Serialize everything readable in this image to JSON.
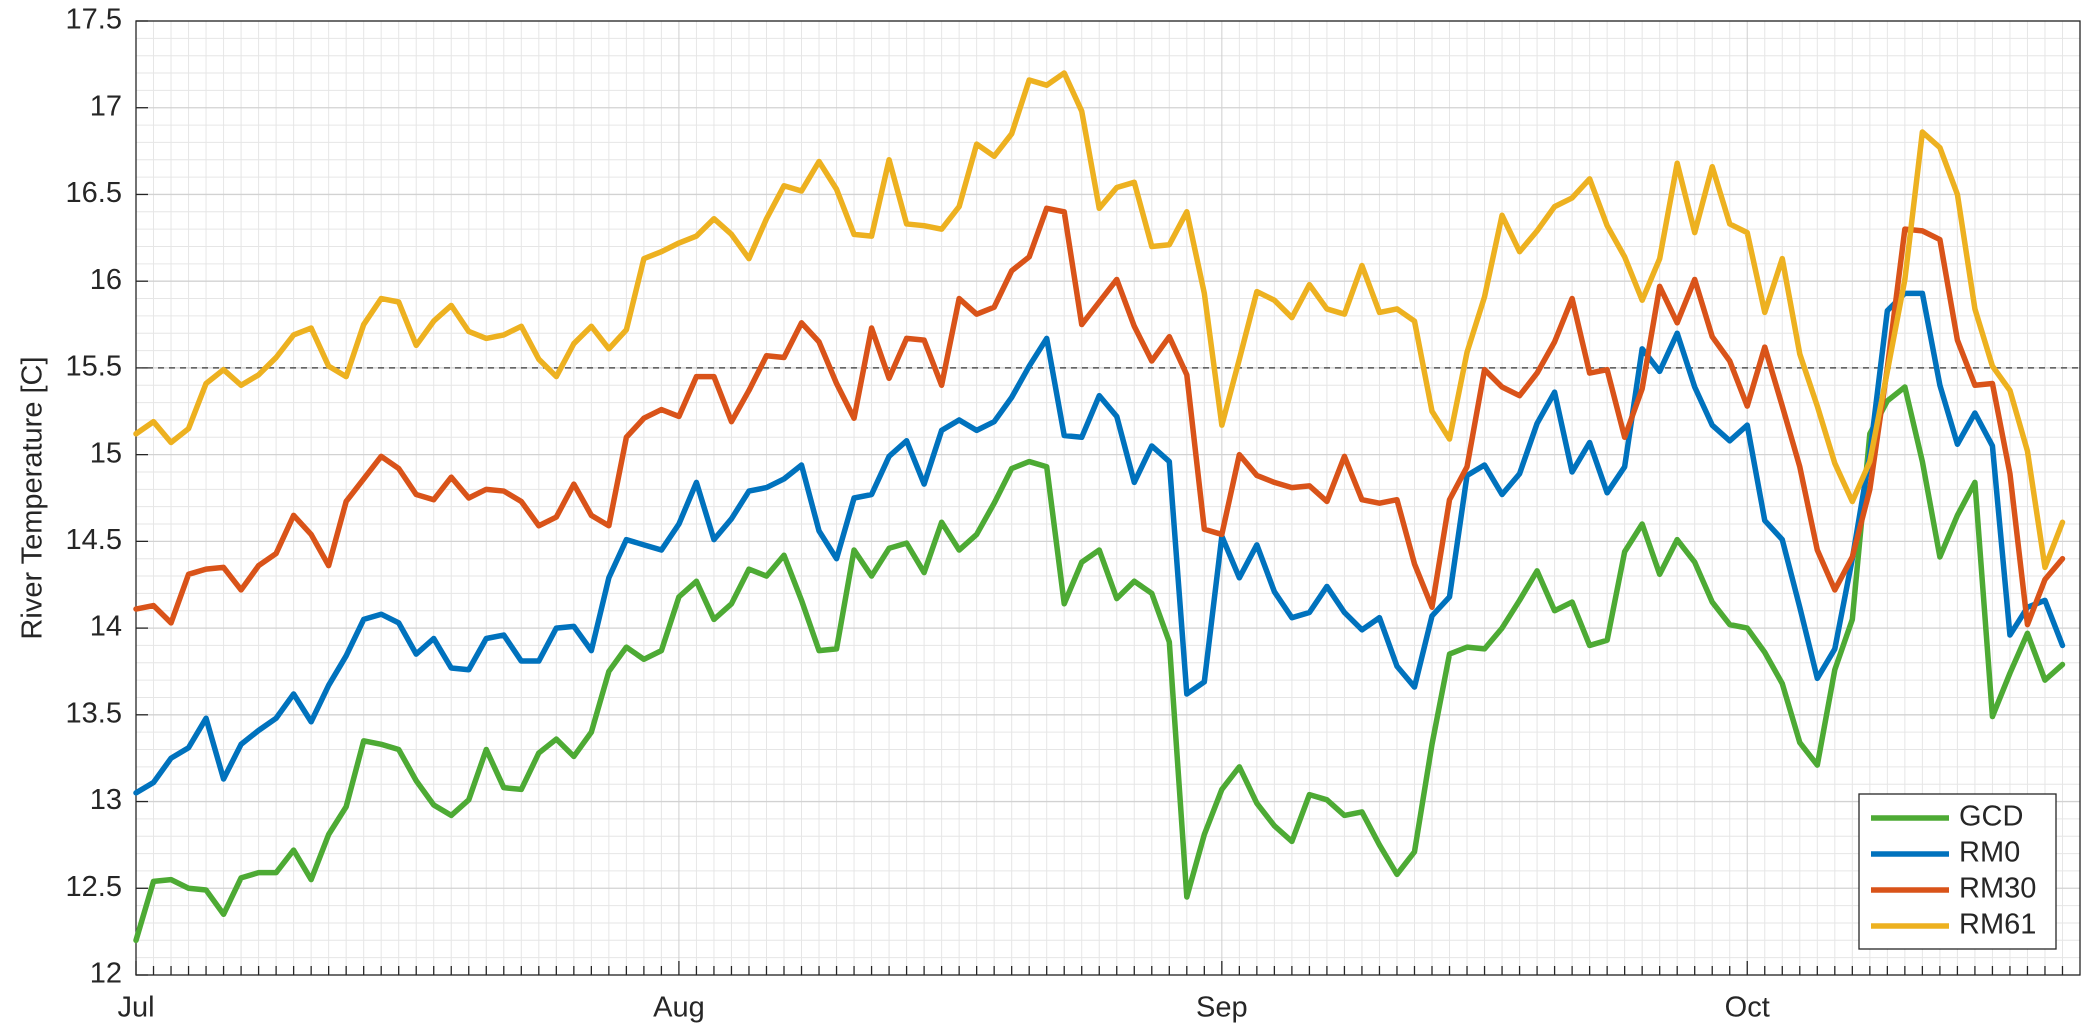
{
  "chart_data": {
    "type": "line",
    "ylabel": "River Temperature [C]",
    "categories": [
      "Jul",
      null,
      null,
      null,
      null,
      null,
      null,
      null,
      null,
      null,
      null,
      null,
      null,
      null,
      null,
      null,
      null,
      null,
      null,
      null,
      null,
      null,
      null,
      null,
      null,
      null,
      null,
      null,
      null,
      null,
      null,
      "Aug",
      null,
      null,
      null,
      null,
      null,
      null,
      null,
      null,
      null,
      null,
      null,
      null,
      null,
      null,
      null,
      null,
      null,
      null,
      null,
      null,
      null,
      null,
      null,
      null,
      null,
      null,
      null,
      null,
      null,
      null,
      "Sep",
      null,
      null,
      null,
      null,
      null,
      null,
      null,
      null,
      null,
      null,
      null,
      null,
      null,
      null,
      null,
      null,
      null,
      null,
      null,
      null,
      null,
      null,
      null,
      null,
      null,
      null,
      null,
      null,
      null,
      "Oct",
      null,
      null,
      null,
      null,
      null,
      null,
      null,
      null,
      null,
      null,
      null,
      null,
      null,
      null,
      null,
      null,
      null,
      null
    ],
    "series": [
      {
        "name": "GCD",
        "color": "#4DAA34",
        "values": [
          12.2,
          12.54,
          12.55,
          12.5,
          12.49,
          12.35,
          12.56,
          12.59,
          12.59,
          12.72,
          12.55,
          12.81,
          12.97,
          13.35,
          13.33,
          13.3,
          13.12,
          12.98,
          12.92,
          13.01,
          13.3,
          13.08,
          13.07,
          13.28,
          13.36,
          13.26,
          13.4,
          13.75,
          13.89,
          13.82,
          13.87,
          14.18,
          14.27,
          14.05,
          14.14,
          14.34,
          14.3,
          14.42,
          14.16,
          13.87,
          13.88,
          14.45,
          14.3,
          14.46,
          14.49,
          14.32,
          14.61,
          14.45,
          14.54,
          14.72,
          14.92,
          14.96,
          14.93,
          14.14,
          14.38,
          14.45,
          14.17,
          14.27,
          14.2,
          13.92,
          12.45,
          12.81,
          13.07,
          13.2,
          12.99,
          12.86,
          12.77,
          13.04,
          13.01,
          12.92,
          12.94,
          12.75,
          12.58,
          12.71,
          13.33,
          13.85,
          13.89,
          13.88,
          14.0,
          14.16,
          14.33,
          14.1,
          14.15,
          13.9,
          13.93,
          14.44,
          14.6,
          14.31,
          14.51,
          14.38,
          14.15,
          14.02,
          14.0,
          13.86,
          13.68,
          13.34,
          13.21,
          13.76,
          14.05,
          15.12,
          15.31,
          15.39,
          14.96,
          14.41,
          14.65,
          14.84,
          13.49,
          13.74,
          13.97,
          13.7,
          13.79
        ]
      },
      {
        "name": "RM0",
        "color": "#0072BD",
        "values": [
          13.05,
          13.11,
          13.25,
          13.31,
          13.48,
          13.13,
          13.33,
          13.41,
          13.48,
          13.62,
          13.46,
          13.67,
          13.84,
          14.05,
          14.08,
          14.03,
          13.85,
          13.94,
          13.77,
          13.76,
          13.94,
          13.96,
          13.81,
          13.81,
          14.0,
          14.01,
          13.87,
          14.29,
          14.51,
          14.48,
          14.45,
          14.6,
          14.84,
          14.51,
          14.63,
          14.79,
          14.81,
          14.86,
          14.94,
          14.56,
          14.4,
          14.75,
          14.77,
          14.99,
          15.08,
          14.83,
          15.14,
          15.2,
          15.14,
          15.19,
          15.33,
          15.51,
          15.67,
          15.11,
          15.1,
          15.34,
          15.22,
          14.84,
          15.05,
          14.96,
          13.62,
          13.69,
          14.53,
          14.29,
          14.48,
          14.21,
          14.06,
          14.09,
          14.24,
          14.09,
          13.99,
          14.06,
          13.78,
          13.66,
          14.07,
          14.18,
          14.88,
          14.94,
          14.77,
          14.89,
          15.18,
          15.36,
          14.9,
          15.07,
          14.78,
          14.93,
          15.61,
          15.48,
          15.7,
          15.39,
          15.17,
          15.08,
          15.17,
          14.62,
          14.51,
          14.12,
          13.71,
          13.88,
          14.4,
          15.0,
          15.83,
          15.93,
          15.93,
          15.4,
          15.06,
          15.24,
          15.05,
          13.96,
          14.12,
          14.16,
          13.9
        ]
      },
      {
        "name": "RM30",
        "color": "#D95319",
        "values": [
          14.11,
          14.13,
          14.03,
          14.31,
          14.34,
          14.35,
          14.22,
          14.36,
          14.43,
          14.65,
          14.54,
          14.36,
          14.73,
          14.86,
          14.99,
          14.92,
          14.77,
          14.74,
          14.87,
          14.75,
          14.8,
          14.79,
          14.73,
          14.59,
          14.64,
          14.83,
          14.65,
          14.59,
          15.1,
          15.21,
          15.26,
          15.22,
          15.45,
          15.45,
          15.19,
          15.37,
          15.57,
          15.56,
          15.76,
          15.65,
          15.41,
          15.21,
          15.73,
          15.44,
          15.67,
          15.66,
          15.4,
          15.9,
          15.81,
          15.85,
          16.06,
          16.14,
          16.42,
          16.4,
          15.75,
          15.88,
          16.01,
          15.74,
          15.54,
          15.68,
          15.46,
          14.57,
          14.54,
          15.0,
          14.88,
          14.84,
          14.81,
          14.82,
          14.73,
          14.99,
          14.74,
          14.72,
          14.74,
          14.37,
          14.12,
          14.74,
          14.93,
          15.49,
          15.39,
          15.34,
          15.47,
          15.65,
          15.9,
          15.47,
          15.49,
          15.1,
          15.38,
          15.97,
          15.76,
          16.01,
          15.68,
          15.54,
          15.28,
          15.62,
          15.28,
          14.93,
          14.45,
          14.22,
          14.41,
          14.8,
          15.5,
          16.3,
          16.29,
          16.24,
          15.66,
          15.4,
          15.41,
          14.89,
          14.02,
          14.28,
          14.4
        ]
      },
      {
        "name": "RM61",
        "color": "#EDB120",
        "values": [
          15.12,
          15.19,
          15.07,
          15.15,
          15.41,
          15.49,
          15.4,
          15.46,
          15.56,
          15.69,
          15.73,
          15.51,
          15.45,
          15.75,
          15.9,
          15.88,
          15.63,
          15.77,
          15.86,
          15.71,
          15.67,
          15.69,
          15.74,
          15.55,
          15.45,
          15.64,
          15.74,
          15.61,
          15.72,
          16.13,
          16.17,
          16.22,
          16.26,
          16.36,
          16.27,
          16.13,
          16.36,
          16.55,
          16.52,
          16.69,
          16.53,
          16.27,
          16.26,
          16.7,
          16.33,
          16.32,
          16.3,
          16.43,
          16.79,
          16.72,
          16.85,
          17.16,
          17.13,
          17.2,
          16.98,
          16.42,
          16.54,
          16.57,
          16.2,
          16.21,
          16.4,
          15.93,
          15.17,
          15.55,
          15.94,
          15.89,
          15.79,
          15.98,
          15.84,
          15.81,
          16.09,
          15.82,
          15.84,
          15.77,
          15.25,
          15.09,
          15.59,
          15.91,
          16.38,
          16.17,
          16.29,
          16.43,
          16.48,
          16.59,
          16.32,
          16.14,
          15.89,
          16.13,
          16.68,
          16.28,
          16.66,
          16.33,
          16.28,
          15.82,
          16.13,
          15.58,
          15.28,
          14.95,
          14.73,
          14.96,
          15.48,
          16.01,
          16.86,
          16.77,
          16.5,
          15.84,
          15.51,
          15.37,
          15.02,
          14.35,
          14.61
        ]
      }
    ],
    "ylim": [
      12,
      17.5
    ],
    "yticks": [
      12,
      12.5,
      13,
      13.5,
      14,
      14.5,
      15,
      15.5,
      16,
      16.5,
      17,
      17.5
    ],
    "reference_line": 15.5,
    "grid": true,
    "legend": "lower right"
  }
}
